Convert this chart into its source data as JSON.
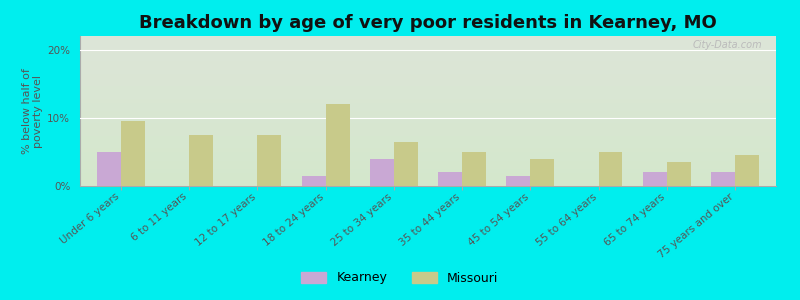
{
  "title": "Breakdown by age of very poor residents in Kearney, MO",
  "ylabel": "% below half of\npoverty level",
  "categories": [
    "Under 6 years",
    "6 to 11 years",
    "12 to 17 years",
    "18 to 24 years",
    "25 to 34 years",
    "35 to 44 years",
    "45 to 54 years",
    "55 to 64 years",
    "65 to 74 years",
    "75 years and over"
  ],
  "kearney_values": [
    5.0,
    0.0,
    0.0,
    1.5,
    4.0,
    2.0,
    1.5,
    0.0,
    2.0,
    2.0
  ],
  "missouri_values": [
    9.5,
    7.5,
    7.5,
    12.0,
    6.5,
    5.0,
    4.0,
    5.0,
    3.5,
    4.5
  ],
  "kearney_color": "#c9a8d4",
  "missouri_color": "#c8ca8a",
  "background_color": "#00eeee",
  "plot_bg_top": "#dde5d8",
  "plot_bg_bottom": "#d4e8cc",
  "ylim": [
    0,
    22
  ],
  "yticks": [
    0,
    10,
    20
  ],
  "ytick_labels": [
    "0%",
    "10%",
    "20%"
  ],
  "bar_width": 0.35,
  "legend_kearney": "Kearney",
  "legend_missouri": "Missouri",
  "title_fontsize": 13,
  "axis_label_fontsize": 8,
  "tick_fontsize": 7.5,
  "watermark": "City-Data.com"
}
